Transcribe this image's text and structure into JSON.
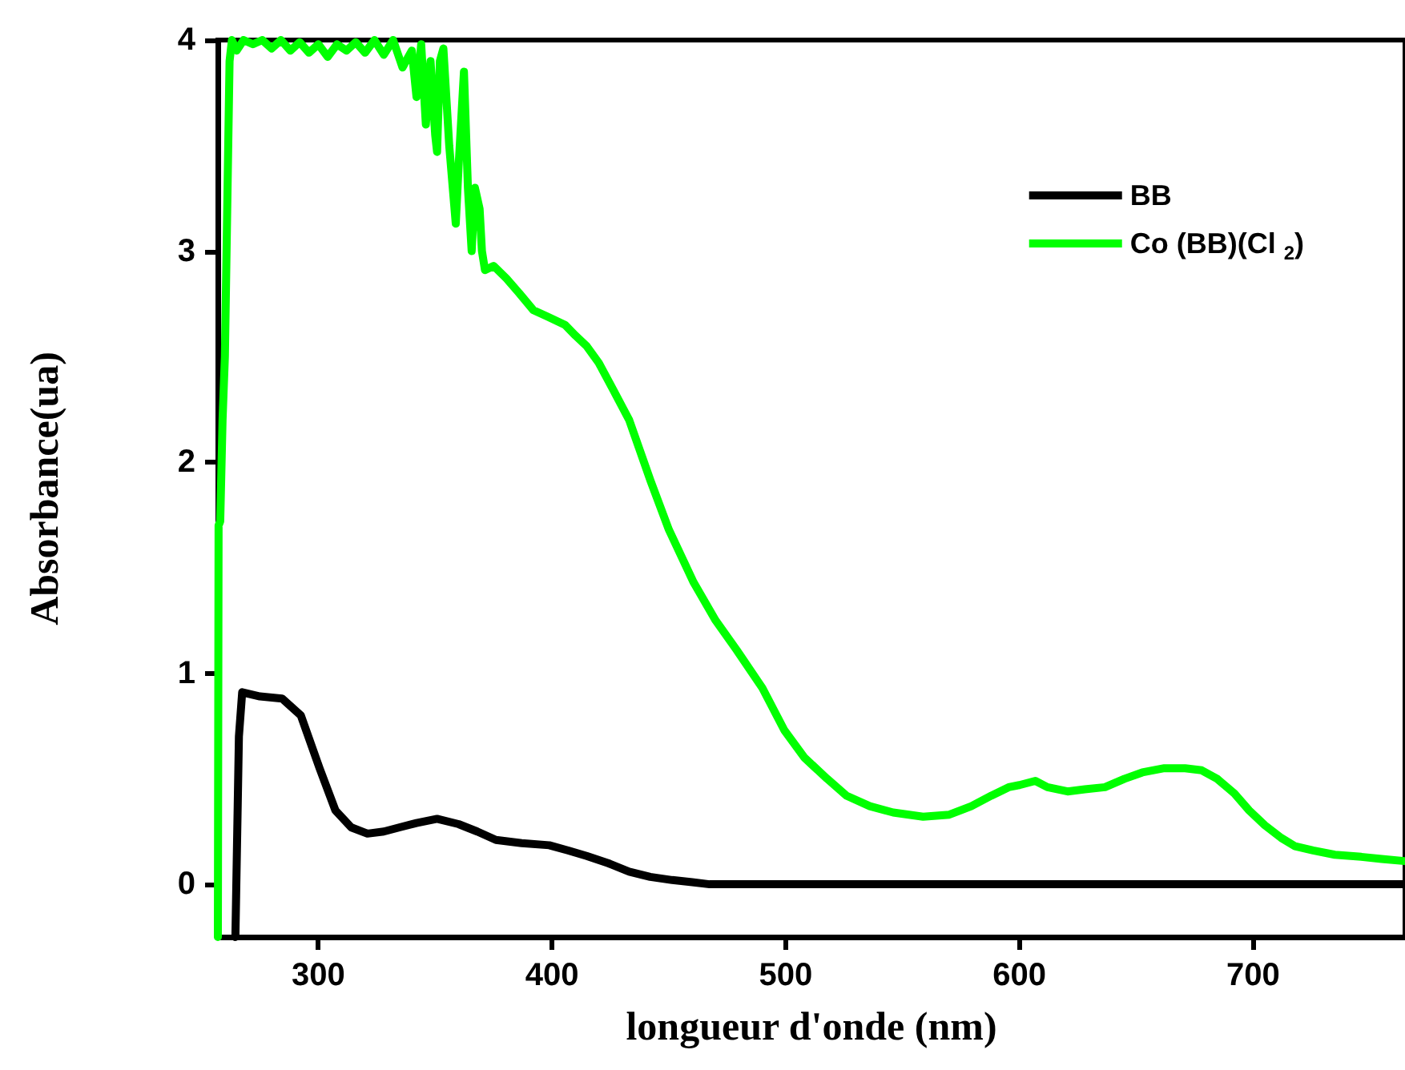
{
  "chart_data": {
    "type": "line",
    "xlabel": "longueur d'onde (nm)",
    "ylabel": "Absorbance(ua)",
    "xlim": [
      257,
      765
    ],
    "xticks": [
      300,
      400,
      500,
      600,
      700
    ],
    "ylim": [
      -0.25,
      4
    ],
    "yticks": [
      0,
      1,
      2,
      3,
      4
    ],
    "grid": false,
    "legend": "top right",
    "marker": "none",
    "line_style": "solid",
    "series": [
      {
        "name": "BB",
        "color": "#000000",
        "x": [
          264.5,
          266,
          267.4,
          275,
          284.5,
          292.5,
          300.5,
          307.3,
          314,
          321,
          328,
          334.8,
          342,
          350.8,
          360,
          368,
          376,
          387,
          398.8,
          407,
          414.8,
          424,
          433,
          442,
          451.4,
          460,
          467.4,
          480,
          500,
          550,
          600,
          650,
          700,
          765
        ],
        "values": [
          -0.25,
          0.7,
          0.91,
          0.89,
          0.88,
          0.8,
          0.55,
          0.35,
          0.27,
          0.24,
          0.25,
          0.27,
          0.29,
          0.31,
          0.285,
          0.25,
          0.21,
          0.195,
          0.185,
          0.16,
          0.134,
          0.1,
          0.06,
          0.035,
          0.02,
          0.01,
          0.0,
          0.0,
          0.0,
          0.0,
          0.0,
          0.0,
          0.0,
          0.0
        ]
      },
      {
        "name": "Co (BB)(Cl $_{2}$)",
        "color": "#00ff00",
        "x": [
          257,
          257.3,
          258,
          259,
          260,
          261,
          262,
          263,
          265,
          268,
          272,
          276,
          280,
          284,
          288,
          292,
          296,
          300,
          304,
          308,
          312,
          316,
          320,
          324,
          328,
          332,
          336,
          340,
          342,
          344,
          346,
          348,
          350,
          350.8,
          352,
          353.5,
          356,
          358.8,
          360,
          362.3,
          364,
          365.6,
          367,
          369,
          370,
          371.3,
          375,
          380.5,
          386,
          392,
          398,
          405.6,
          410,
          414.8,
          420,
          426.3,
          433,
          442.2,
          450,
          460.6,
          470,
          479,
          490,
          499.4,
          508,
          517.7,
          526,
          536,
          546,
          558.8,
          570,
          579.4,
          588,
          595.4,
          600,
          606.8,
          612,
          620.6,
          628,
          636.6,
          645,
          652.6,
          662,
          670.9,
          678,
          684.6,
          692,
          698.3,
          705,
          712,
          718,
          725.7,
          735,
          746.3,
          755,
          764.8
        ],
        "values": [
          -0.25,
          1.7,
          1.72,
          2.2,
          2.5,
          3.2,
          3.9,
          4.0,
          3.95,
          4.0,
          3.98,
          4.0,
          3.96,
          4.0,
          3.95,
          3.99,
          3.94,
          3.98,
          3.92,
          3.98,
          3.95,
          3.99,
          3.94,
          4.0,
          3.93,
          4.0,
          3.87,
          3.95,
          3.73,
          3.98,
          3.6,
          3.9,
          3.55,
          3.47,
          3.9,
          3.96,
          3.5,
          3.13,
          3.4,
          3.85,
          3.3,
          3.0,
          3.3,
          3.2,
          3.0,
          2.91,
          2.93,
          2.87,
          2.8,
          2.72,
          2.69,
          2.65,
          2.6,
          2.55,
          2.47,
          2.34,
          2.2,
          1.91,
          1.68,
          1.43,
          1.25,
          1.11,
          0.93,
          0.73,
          0.6,
          0.5,
          0.42,
          0.37,
          0.34,
          0.32,
          0.33,
          0.37,
          0.42,
          0.46,
          0.47,
          0.49,
          0.46,
          0.44,
          0.45,
          0.46,
          0.5,
          0.53,
          0.55,
          0.55,
          0.54,
          0.5,
          0.43,
          0.35,
          0.28,
          0.22,
          0.18,
          0.16,
          0.14,
          0.13,
          0.12,
          0.11
        ]
      }
    ]
  }
}
